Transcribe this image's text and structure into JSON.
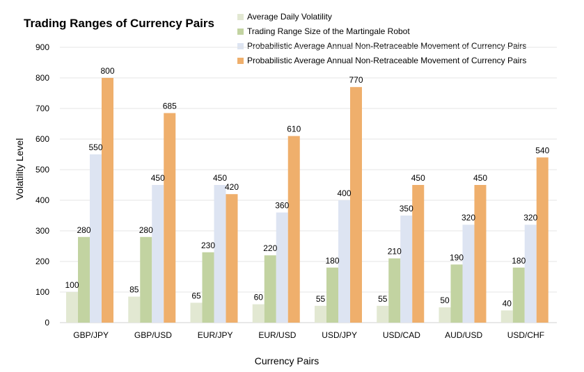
{
  "chart_data": {
    "type": "bar",
    "title": "Trading Ranges of Currency Pairs",
    "xlabel": "Currency Pairs",
    "ylabel": "Volatility Level",
    "ylim": [
      0,
      900
    ],
    "yticks": [
      0,
      100,
      200,
      300,
      400,
      500,
      600,
      700,
      800,
      900
    ],
    "grid": true,
    "legend_position": "top-right",
    "categories": [
      "GBP/JPY",
      "GBP/USD",
      "EUR/JPY",
      "EUR/USD",
      "USD/JPY",
      "USD/CAD",
      "AUD/USD",
      "USD/CHF"
    ],
    "series": [
      {
        "name": "Average Daily Volatility",
        "color": "#e2e8d2",
        "values": [
          100,
          85,
          65,
          60,
          55,
          55,
          50,
          40
        ]
      },
      {
        "name": "Trading Range Size of the Martingale Robot",
        "color": "#c2d3a1",
        "values": [
          280,
          280,
          230,
          220,
          180,
          210,
          190,
          180
        ]
      },
      {
        "name": "Probabilistic Average Annual Non-Retraceable Movement of Currency Pairs",
        "color": "#dde4f2",
        "values": [
          550,
          450,
          450,
          360,
          400,
          350,
          320,
          320
        ]
      },
      {
        "name": "Probabilistic Average Annual Non-Retraceable Movement of Currency Pairs",
        "color": "#efaf6c",
        "values": [
          800,
          685,
          420,
          610,
          770,
          450,
          450,
          540
        ]
      }
    ]
  }
}
